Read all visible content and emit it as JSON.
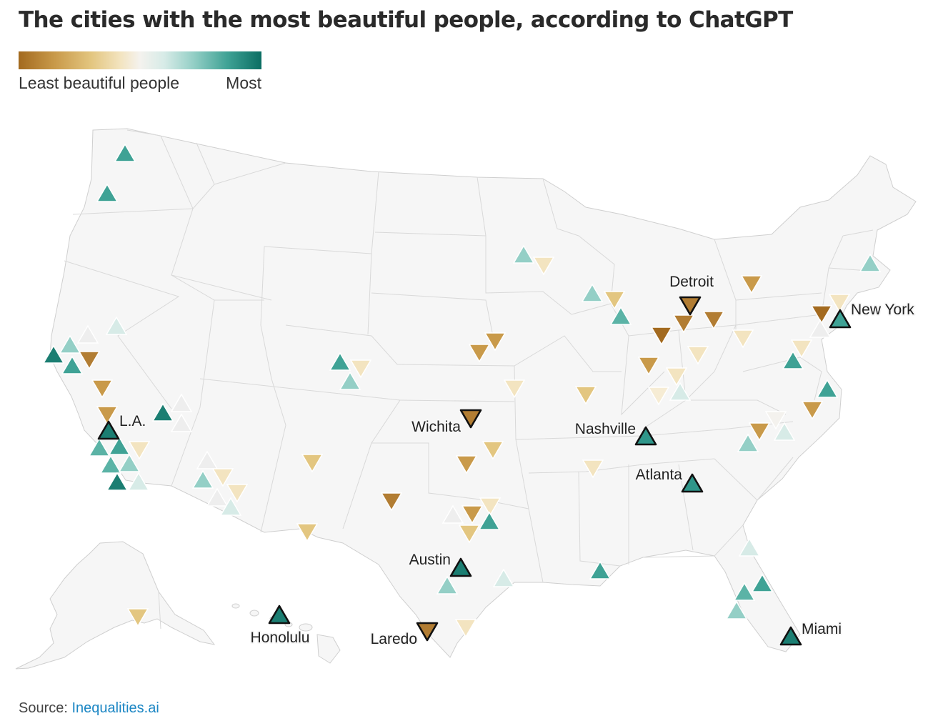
{
  "title": "The cities with the most beautiful people, according to ChatGPT",
  "legend": {
    "low_label": "Least beautiful people",
    "high_label": "Most",
    "colors": [
      "#a36a1f",
      "#c99a4a",
      "#e3c680",
      "#f3e4c0",
      "#f4f2ee",
      "#d7ebe7",
      "#94cfc6",
      "#3fa295",
      "#0b6e63"
    ]
  },
  "source": {
    "prefix": "Source: ",
    "link_text": "Inequalities.ai"
  },
  "highlighted_cities": [
    {
      "name": "L.A.",
      "rating": "most"
    },
    {
      "name": "Detroit",
      "rating": "least"
    },
    {
      "name": "New York",
      "rating": "most"
    },
    {
      "name": "Wichita",
      "rating": "least"
    },
    {
      "name": "Nashville",
      "rating": "most"
    },
    {
      "name": "Atlanta",
      "rating": "most"
    },
    {
      "name": "Austin",
      "rating": "most"
    },
    {
      "name": "Laredo",
      "rating": "least"
    },
    {
      "name": "Miami",
      "rating": "most"
    },
    {
      "name": "Honolulu",
      "rating": "most"
    }
  ]
}
